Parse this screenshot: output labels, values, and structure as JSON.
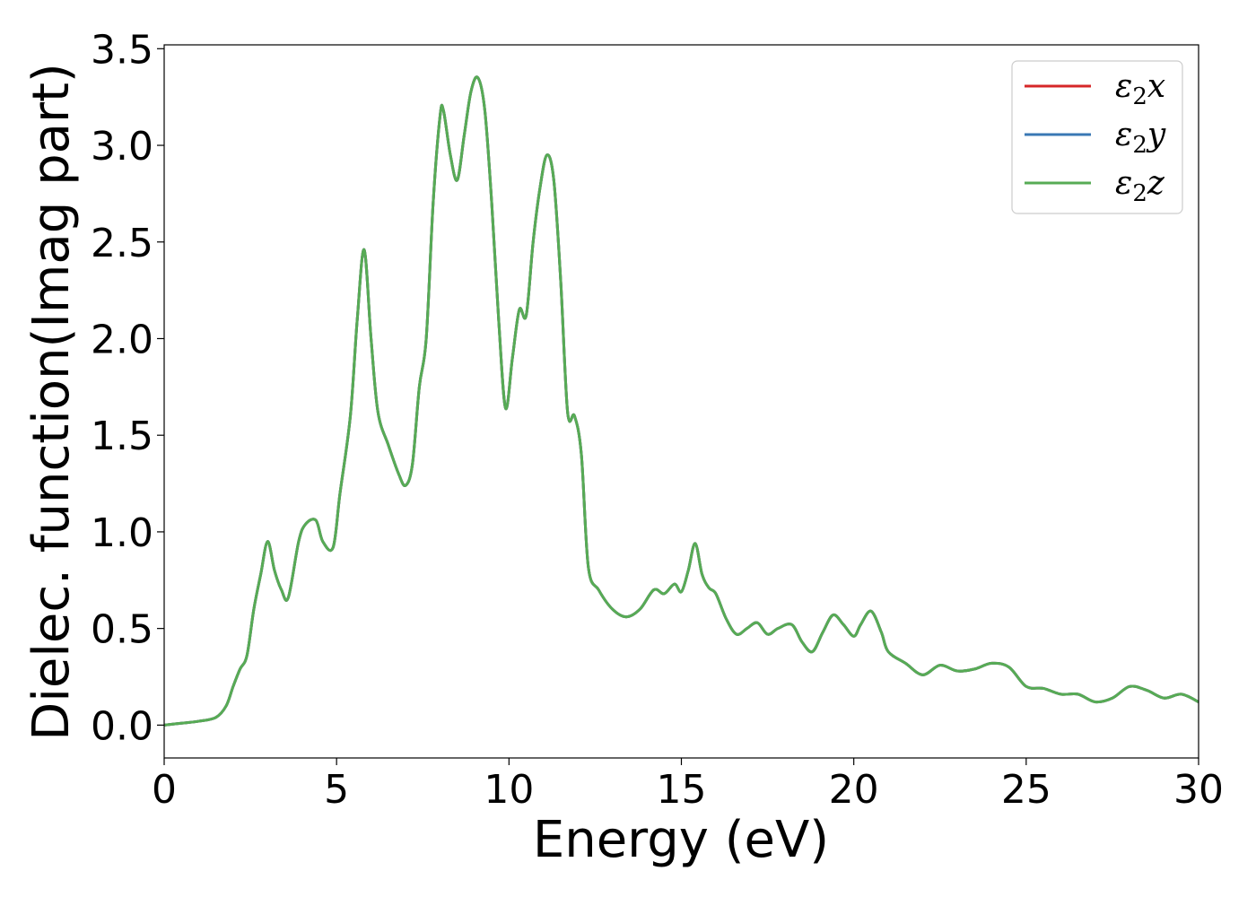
{
  "chart_data": {
    "type": "line",
    "xlabel": "Energy (eV)",
    "ylabel": "Dielec. function(Imag part)",
    "xlim": [
      0,
      30
    ],
    "ylim": [
      -0.17,
      3.52
    ],
    "xticks": [
      0,
      5,
      10,
      15,
      20,
      25,
      30
    ],
    "xtick_labels": [
      "0",
      "5",
      "10",
      "15",
      "20",
      "25",
      "30"
    ],
    "yticks": [
      0.0,
      0.5,
      1.0,
      1.5,
      2.0,
      2.5,
      3.0,
      3.5
    ],
    "ytick_labels": [
      "0.0",
      "0.5",
      "1.0",
      "1.5",
      "2.0",
      "2.5",
      "3.0",
      "3.5"
    ],
    "grid": false,
    "legend_position": "top-right",
    "series": [
      {
        "name": "ε₂x",
        "legend": {
          "base": "ε",
          "sub": "2",
          "var": "x"
        },
        "color": "#d62728"
      },
      {
        "name": "ε₂y",
        "legend": {
          "base": "ε",
          "sub": "2",
          "var": "y"
        },
        "color": "#3a78b4"
      },
      {
        "name": "ε₂z",
        "legend": {
          "base": "ε",
          "sub": "2",
          "var": "z"
        },
        "color": "#57ab55"
      }
    ],
    "x": [
      0,
      0.5,
      1.0,
      1.5,
      1.8,
      2.0,
      2.2,
      2.4,
      2.6,
      2.8,
      3.0,
      3.2,
      3.4,
      3.6,
      3.9,
      4.1,
      4.4,
      4.6,
      4.9,
      5.1,
      5.4,
      5.6,
      5.8,
      6.0,
      6.2,
      6.5,
      6.8,
      7.0,
      7.2,
      7.4,
      7.6,
      7.8,
      8.0,
      8.1,
      8.3,
      8.5,
      8.7,
      8.9,
      9.1,
      9.3,
      9.5,
      9.7,
      9.9,
      10.1,
      10.3,
      10.5,
      10.7,
      10.9,
      11.1,
      11.3,
      11.5,
      11.7,
      11.9,
      12.1,
      12.3,
      12.6,
      13.0,
      13.4,
      13.8,
      14.2,
      14.5,
      14.8,
      15.0,
      15.2,
      15.4,
      15.6,
      15.8,
      16.0,
      16.3,
      16.6,
      16.9,
      17.2,
      17.5,
      17.8,
      18.2,
      18.5,
      18.8,
      19.1,
      19.4,
      19.7,
      20.0,
      20.2,
      20.5,
      20.8,
      21.0,
      21.5,
      22.0,
      22.5,
      23.0,
      23.5,
      24.0,
      24.5,
      25.0,
      25.5,
      26.0,
      26.5,
      27.0,
      27.5,
      28.0,
      28.5,
      29.0,
      29.5,
      30.0
    ],
    "y": [
      0.0,
      0.01,
      0.02,
      0.04,
      0.1,
      0.2,
      0.29,
      0.36,
      0.6,
      0.78,
      0.95,
      0.8,
      0.7,
      0.66,
      0.95,
      1.04,
      1.06,
      0.95,
      0.92,
      1.2,
      1.6,
      2.1,
      2.46,
      2.0,
      1.62,
      1.45,
      1.3,
      1.24,
      1.35,
      1.75,
      2.0,
      2.7,
      3.15,
      3.18,
      2.95,
      2.82,
      3.05,
      3.28,
      3.35,
      3.18,
      2.7,
      2.1,
      1.64,
      1.9,
      2.15,
      2.12,
      2.5,
      2.78,
      2.95,
      2.82,
      2.3,
      1.62,
      1.6,
      1.4,
      0.82,
      0.7,
      0.6,
      0.56,
      0.6,
      0.7,
      0.68,
      0.73,
      0.69,
      0.8,
      0.94,
      0.78,
      0.71,
      0.68,
      0.55,
      0.47,
      0.5,
      0.53,
      0.47,
      0.5,
      0.52,
      0.43,
      0.38,
      0.48,
      0.57,
      0.52,
      0.46,
      0.52,
      0.59,
      0.48,
      0.38,
      0.32,
      0.26,
      0.31,
      0.28,
      0.29,
      0.32,
      0.3,
      0.2,
      0.19,
      0.16,
      0.16,
      0.12,
      0.14,
      0.2,
      0.18,
      0.14,
      0.16,
      0.12
    ]
  }
}
